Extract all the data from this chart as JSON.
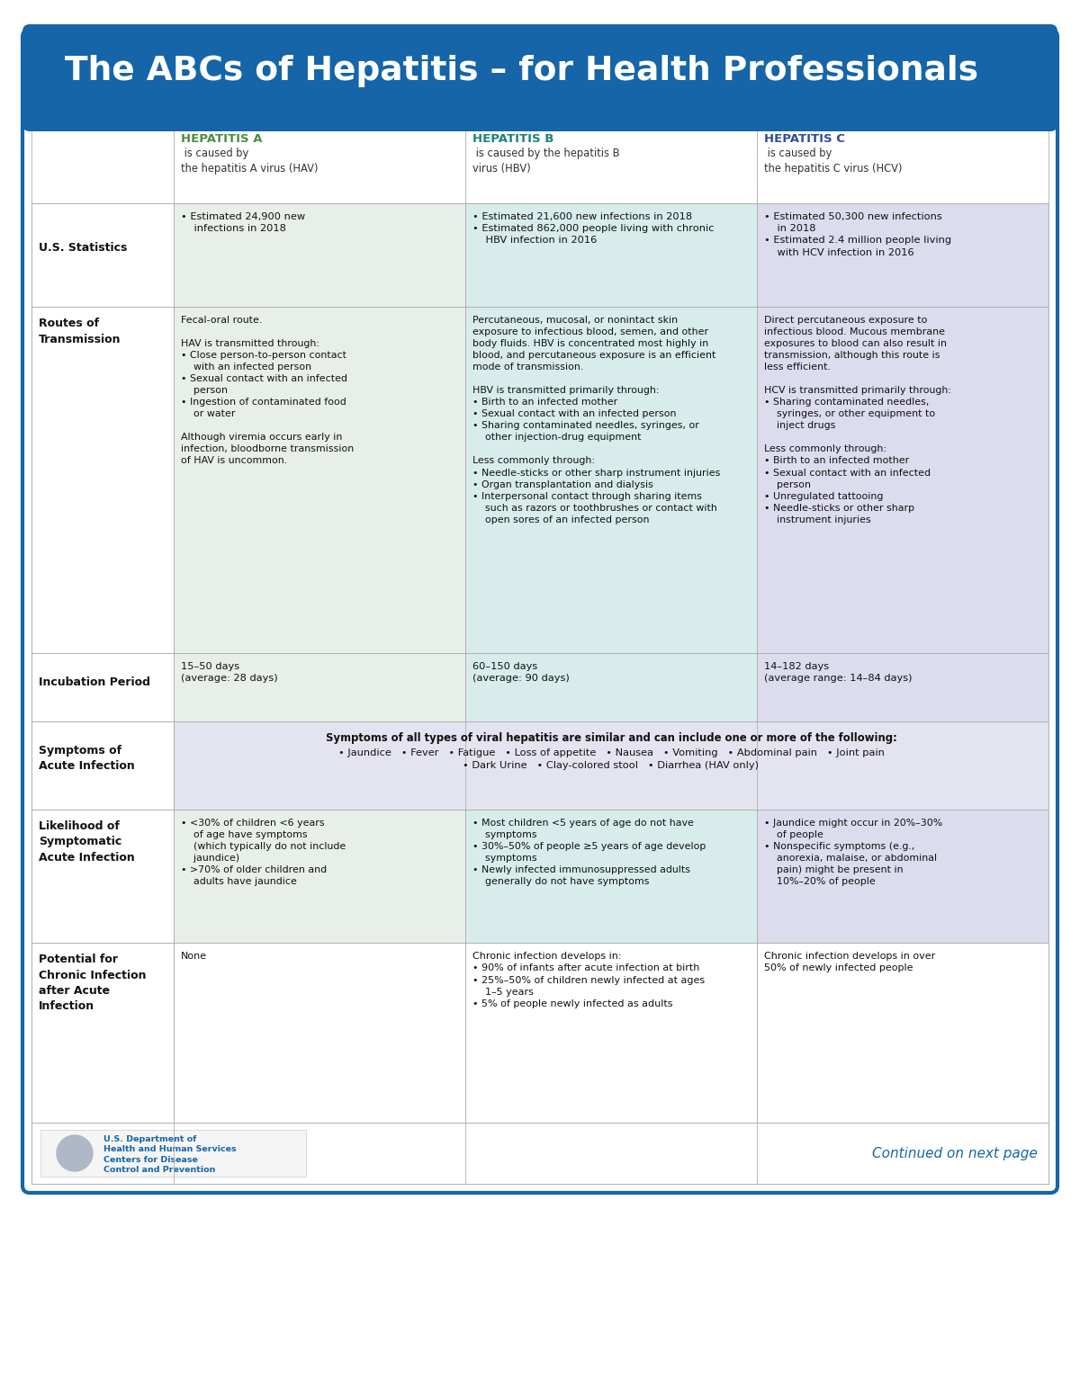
{
  "title": "The ABCs of Hepatitis – for Health Professionals",
  "title_bg": "#1565a8",
  "title_color": "#ffffff",
  "border_color": "#1565a8",
  "col_headers": [
    {
      "name": "HEPATITIS A",
      "color": "#4a8c3f",
      "suffix": " is caused by\nthe hepatitis A virus (HAV)"
    },
    {
      "name": "HEPATITIS B",
      "color": "#1a8080",
      "suffix": " is caused by the hepatitis B\nvirus (HBV)"
    },
    {
      "name": "HEPATITIS C",
      "color": "#2e4b9e",
      "suffix": " is caused by\nthe hepatitis C virus (HCV)"
    }
  ],
  "col_bg": [
    "#e8efe8",
    "#d8ecec",
    "#dcdcee"
  ],
  "symptoms_bg": "#e4e4f0",
  "footer_text": "Continued on next page",
  "cells": [
    [
      "• Estimated 24,900 new\n    infections in 2018",
      "• Estimated 21,600 new infections in 2018\n• Estimated 862,000 people living with chronic\n    HBV infection in 2016",
      "• Estimated 50,300 new infections\n    in 2018\n• Estimated 2.4 million people living\n    with HCV infection in 2016"
    ],
    [
      "Fecal-oral route.\n\nHAV is transmitted through:\n• Close person-to-person contact\n    with an infected person\n• Sexual contact with an infected\n    person\n• Ingestion of contaminated food\n    or water\n\nAlthough viremia occurs early in\ninfection, bloodborne transmission\nof HAV is uncommon.",
      "Percutaneous, mucosal, or nonintact skin\nexposure to infectious blood, semen, and other\nbody fluids. HBV is concentrated most highly in\nblood, and percutaneous exposure is an efficient\nmode of transmission.\n\nHBV is transmitted primarily through:\n• Birth to an infected mother\n• Sexual contact with an infected person\n• Sharing contaminated needles, syringes, or\n    other injection-drug equipment\n\nLess commonly through:\n• Needle-sticks or other sharp instrument injuries\n• Organ transplantation and dialysis\n• Interpersonal contact through sharing items\n    such as razors or toothbrushes or contact with\n    open sores of an infected person",
      "Direct percutaneous exposure to\ninfectious blood. Mucous membrane\nexposures to blood can also result in\ntransmission, although this route is\nless efficient.\n\nHCV is transmitted primarily through:\n• Sharing contaminated needles,\n    syringes, or other equipment to\n    inject drugs\n\nLess commonly through:\n• Birth to an infected mother\n• Sexual contact with an infected\n    person\n• Unregulated tattooing\n• Needle-sticks or other sharp\n    instrument injuries"
    ],
    [
      "15–50 days\n(average: 28 days)",
      "60–150 days\n(average: 90 days)",
      "14–182 days\n(average range: 14–84 days)"
    ],
    [
      "Symptoms of all types of viral hepatitis are similar and can include one or more of the following:",
      "• Jaundice   • Fever   • Fatigue   • Loss of appetite   • Nausea   • Vomiting   • Abdominal pain   • Joint pain\n• Dark Urine   • Clay-colored stool   • Diarrhea (HAV only)",
      ""
    ],
    [
      "• <30% of children <6 years\n    of age have symptoms\n    (which typically do not include\n    jaundice)\n• >70% of older children and\n    adults have jaundice",
      "• Most children <5 years of age do not have\n    symptoms\n• 30%–50% of people ≥5 years of age develop\n    symptoms\n• Newly infected immunosuppressed adults\n    generally do not have symptoms",
      "• Jaundice might occur in 20%–30%\n    of people\n• Nonspecific symptoms (e.g.,\n    anorexia, malaise, or abdominal\n    pain) might be present in\n    10%–20% of people"
    ],
    [
      "None",
      "Chronic infection develops in:\n• 90% of infants after acute infection at birth\n• 25%–50% of children newly infected at ages\n    1–5 years\n• 5% of people newly infected as adults",
      "Chronic infection develops in over\n50% of newly infected people"
    ]
  ]
}
